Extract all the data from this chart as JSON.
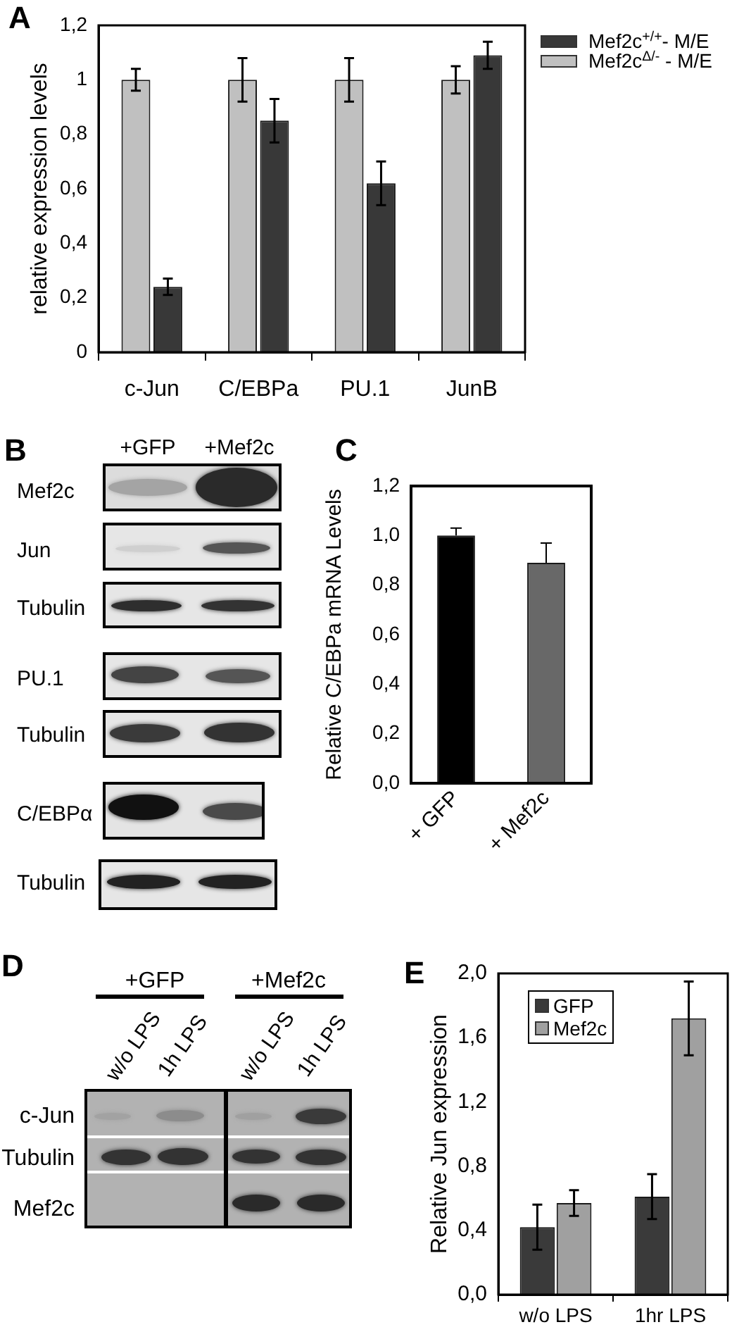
{
  "chart_data": [
    {
      "type": "bar",
      "title": "A",
      "ylabel": "relative expression levels",
      "categories": [
        "c-Jun",
        "C/EBPa",
        "PU.1",
        "JunB"
      ],
      "series": [
        {
          "name": "Mef2c$^{Δ/-}$ - M/E",
          "color": "#c0c0c0",
          "values": [
            1.0,
            1.0,
            1.0,
            1.0
          ],
          "errors": [
            0.04,
            0.08,
            0.08,
            0.05
          ]
        },
        {
          "name": "Mef2c$^{+/+}$- M/E",
          "color": "#383838",
          "values": [
            0.24,
            0.85,
            0.62,
            1.09
          ],
          "errors": [
            0.03,
            0.08,
            0.08,
            0.05
          ]
        }
      ],
      "ylim": [
        0,
        1.2
      ],
      "yticks": [
        0,
        {
          "value": 0.2,
          "label": "0,2"
        },
        {
          "value": 0.4,
          "label": "0,4"
        },
        {
          "value": 0.6,
          "label": "0,6"
        },
        {
          "value": 0.8,
          "label": "0,8"
        },
        1,
        {
          "value": 1.2,
          "label": "1,2"
        }
      ],
      "legend": "right"
    },
    {
      "type": "other",
      "title": "B",
      "annotations": [
        "+GFP",
        "+Mef2c",
        "Mef2c",
        "Jun",
        "Tubulin",
        "PU.1",
        "Tubulin",
        "C/EBPα",
        "Tubulin"
      ]
    },
    {
      "type": "bar",
      "title": "C",
      "ylabel": "Relative C/EBPa mRNA Levels",
      "categories": [
        "+ GFP",
        "+ Mef2c"
      ],
      "values": [
        1.0,
        0.89
      ],
      "colors": [
        "#000000",
        "#686868"
      ],
      "errors": [
        [
          1.0,
          1.03
        ],
        [
          0.89,
          0.97
        ]
      ],
      "ylim": [
        0,
        1.2
      ],
      "yticks": [
        {
          "value": 0,
          "label": "0,0"
        },
        {
          "value": 0.2,
          "label": "0,2"
        },
        {
          "value": 0.4,
          "label": "0,4"
        },
        {
          "value": 0.6,
          "label": "0,6"
        },
        {
          "value": 0.8,
          "label": "0,8"
        },
        {
          "value": 1,
          "label": "1,0"
        },
        {
          "value": 1.2,
          "label": "1,2"
        }
      ]
    },
    {
      "type": "other",
      "title": "D",
      "annotations": [
        "+GFP",
        "+Mef2c",
        "w/o LPS",
        "1h LPS",
        "w/o LPS",
        "1h LPS",
        "c-Jun",
        "Tubulin",
        "Mef2c"
      ]
    },
    {
      "type": "bar",
      "title": "E",
      "ylabel": "Relative Jun expression",
      "categories": [
        "w/o LPS",
        "1hr LPS"
      ],
      "series": [
        {
          "name": "GFP",
          "color": "#3a3a3a",
          "values": [
            0.42,
            0.61
          ],
          "errors": [
            0.14,
            0.14
          ]
        },
        {
          "name": "Mef2c",
          "color": "#a0a0a0",
          "values": [
            0.57,
            1.72
          ],
          "errors": [
            0.08,
            0.23
          ]
        }
      ],
      "ylim": [
        0,
        2
      ],
      "yticks": [
        {
          "value": 0,
          "label": "0,0"
        },
        {
          "value": 0.4,
          "label": "0,4"
        },
        {
          "value": 0.8,
          "label": "0,8"
        },
        {
          "value": 1.2,
          "label": "1,2"
        },
        {
          "value": 1.6,
          "label": "1,6"
        },
        {
          "value": 2,
          "label": "2,0"
        }
      ],
      "legend": "top left"
    }
  ]
}
